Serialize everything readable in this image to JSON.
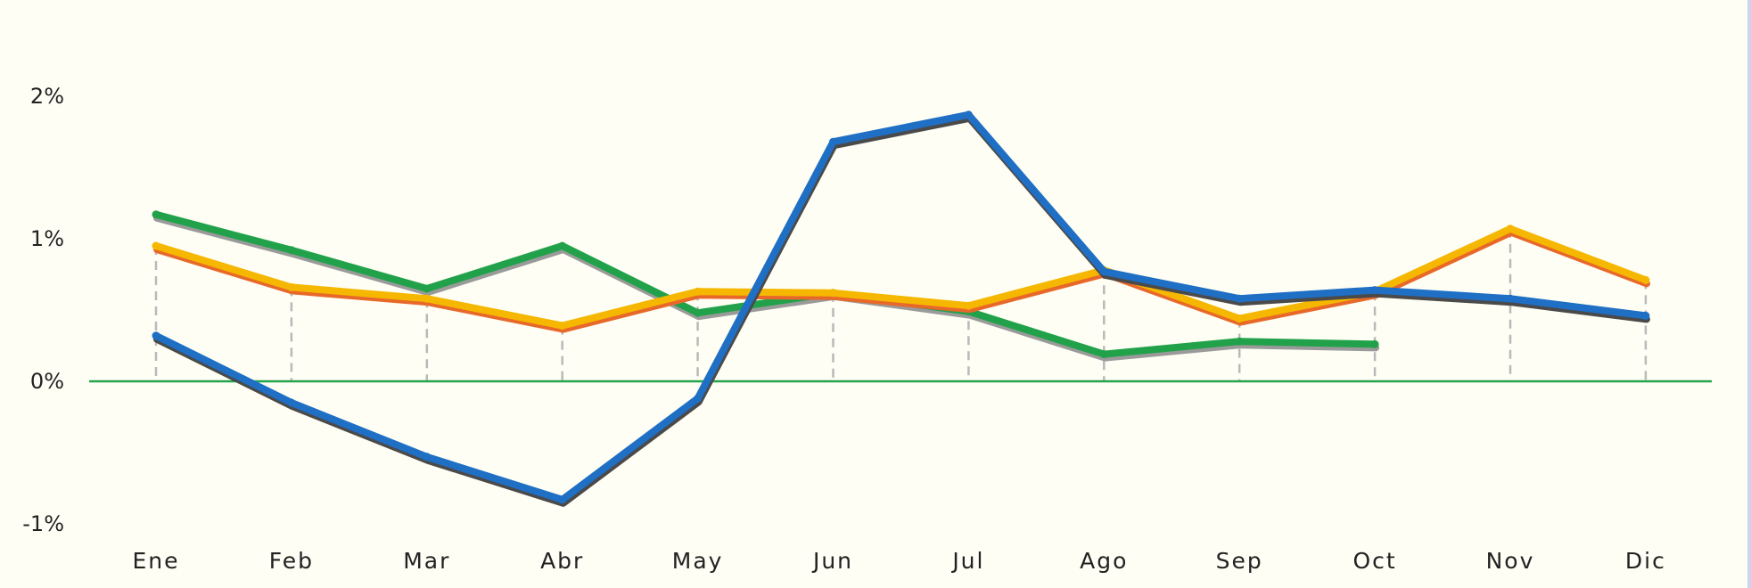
{
  "chart_data": {
    "type": "line",
    "categories": [
      "Ene",
      "Feb",
      "Mar",
      "Abr",
      "May",
      "Jun",
      "Jul",
      "Ago",
      "Sep",
      "Oct",
      "Nov",
      "Dic"
    ],
    "yticks": [
      "2%",
      "1%",
      "0%",
      "-1%"
    ],
    "ylim": [
      -1.0,
      2.0
    ],
    "title": "",
    "xlabel": "",
    "ylabel": "",
    "grid": false,
    "legend": "none",
    "series": [
      {
        "color": "#1f6fc5",
        "shadow": "#4a4a4a",
        "values": [
          0.32,
          -0.15,
          -0.53,
          -0.83,
          -0.12,
          1.68,
          1.87,
          0.77,
          0.58,
          0.64,
          0.58,
          0.46
        ]
      },
      {
        "color": "#f5b700",
        "shadow": "#e8682a",
        "values": [
          0.95,
          0.66,
          0.58,
          0.39,
          0.63,
          0.62,
          0.53,
          0.78,
          0.44,
          0.63,
          1.07,
          0.71
        ]
      },
      {
        "color": "#21a24a",
        "shadow": "#9a9a9a",
        "values": [
          1.17,
          0.92,
          0.65,
          0.95,
          0.48,
          0.62,
          0.49,
          0.19,
          0.28,
          0.26,
          null,
          null
        ]
      }
    ],
    "drop_lines_from_series": 1,
    "zero_line_color": "#22a44c"
  }
}
